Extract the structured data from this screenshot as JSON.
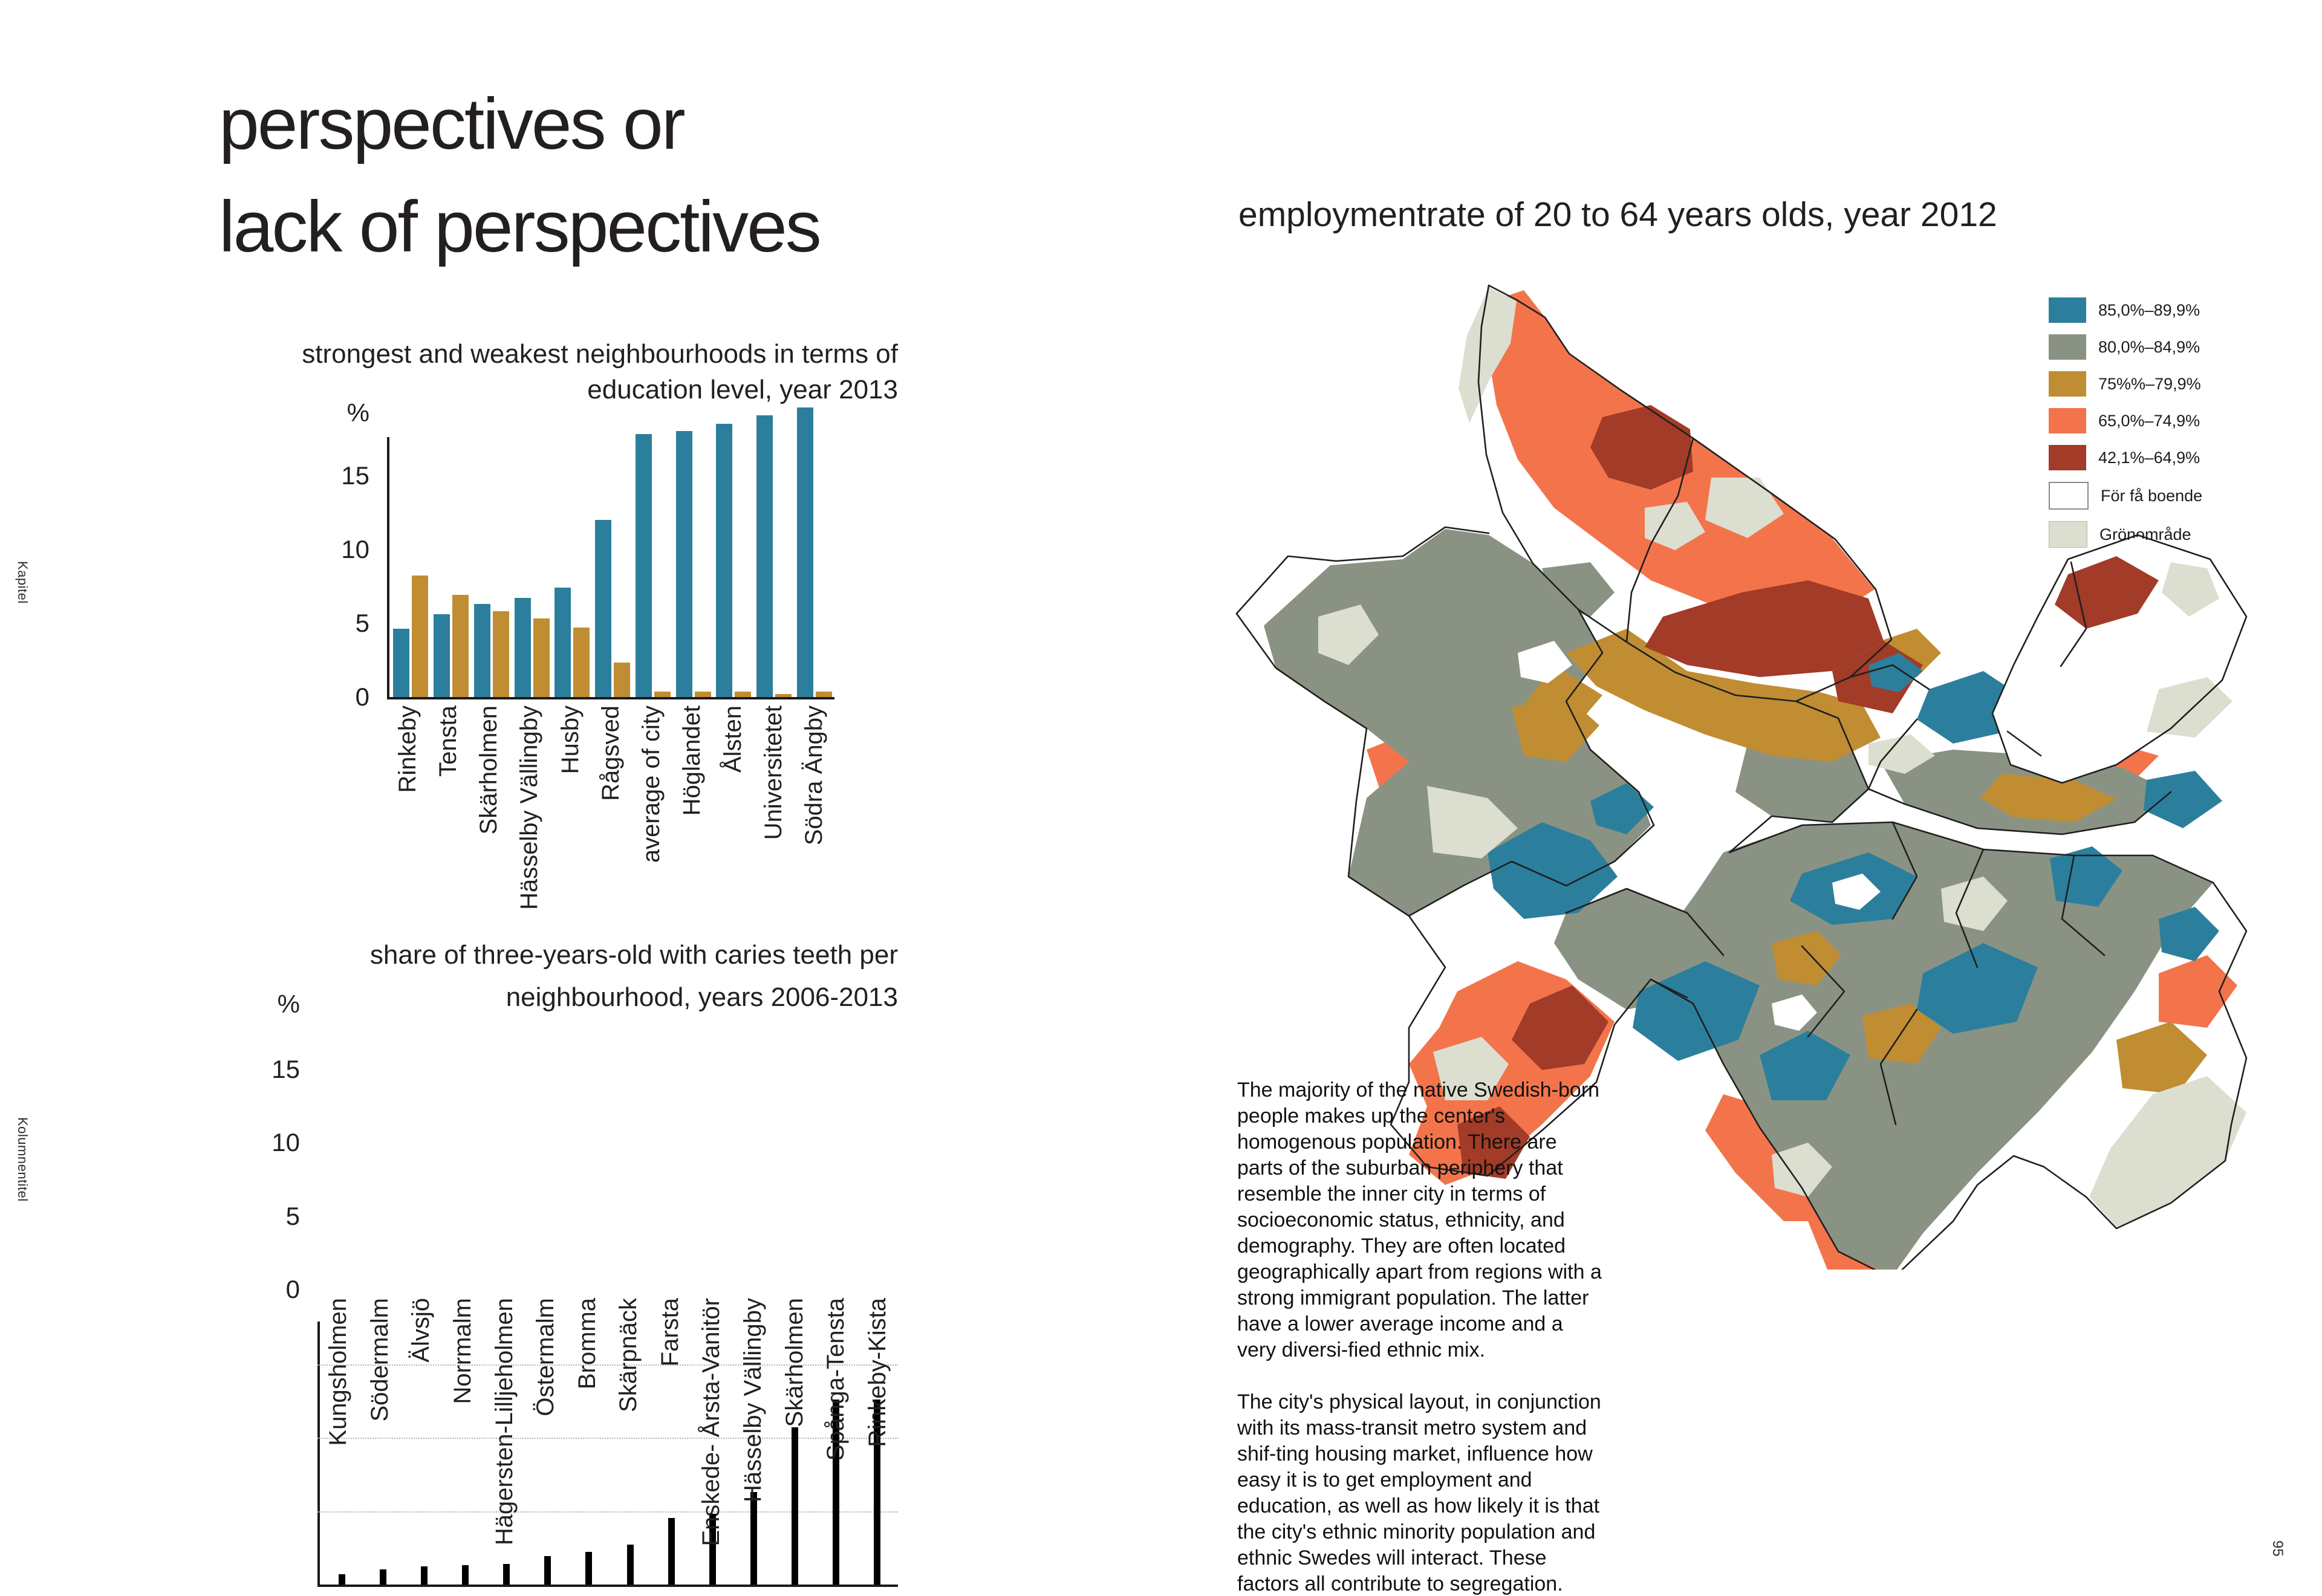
{
  "page": {
    "margin_label_top": "Kapitel",
    "margin_label_bottom": "Kolumnentitel",
    "page_number": "95",
    "title_line1": "perspectives or",
    "title_line2": "lack of perspectives"
  },
  "map": {
    "title": "employmentrate of 20 to 64 years olds, year 2012",
    "legend": [
      {
        "key": "teal",
        "label": "85,0%–89,9%",
        "color": "#2b7f9d"
      },
      {
        "key": "green",
        "label": "80,0%–84,9%",
        "color": "#8a9383"
      },
      {
        "key": "gold",
        "label": "75%%–79,9%",
        "color": "#c08d33"
      },
      {
        "key": "orange",
        "label": "65,0%–74,9%",
        "color": "#f3744b"
      },
      {
        "key": "dred",
        "label": "42,1%–64,9%",
        "color": "#a23b27"
      },
      {
        "key": "white",
        "label": "För få boende",
        "color": "#ffffff"
      },
      {
        "key": "pale",
        "label": "Grönområde",
        "color": "#dcded0"
      }
    ],
    "paragraph1": "The majority of the native Swedish-born people makes up the center's homogenous population. There are parts of the suburban periphery that resemble the inner city in terms of socioeconomic status, ethnicity, and demography. They are often located geographically apart from regions with a strong immigrant population. The latter have a lower average income and a very diversi-fied ethnic mix.",
    "paragraph2": "The city's physical layout, in conjunction with its mass-transit metro system and shif-ting housing market, influence how easy it is to get employment and education, as well as how likely it is that the city's ethnic minority population and ethnic Swedes will interact. These factors all contribute to segregation."
  },
  "chart_data": [
    {
      "type": "bar",
      "title_lines": [
        "strongest and weakest neighbourhoods in terms of",
        "education level, year 2013"
      ],
      "ylabel": "%",
      "yticks": [
        0,
        5,
        10,
        15
      ],
      "ylim": [
        0,
        20
      ],
      "legend_position": "none",
      "grid": false,
      "categories": [
        "Rinkeby",
        "Tensta",
        "Skärholmen",
        "Hässelby Vällingby",
        "Husby",
        "Rågsved",
        "average of city",
        "Höglandet",
        "Ålsten",
        "Universitetet",
        "Södra Ängby"
      ],
      "series": [
        {
          "name": "high-education",
          "color": "#2b7f9d",
          "values": [
            4.7,
            5.7,
            6.4,
            6.8,
            7.5,
            12.1,
            17.9,
            18.1,
            18.6,
            19.2,
            19.7
          ]
        },
        {
          "name": "low-education",
          "color": "#c08d33",
          "values": [
            8.3,
            7.0,
            5.9,
            5.4,
            4.8,
            2.4,
            0.45,
            0.45,
            0.45,
            0.3,
            0.45
          ]
        }
      ]
    },
    {
      "type": "bar",
      "title_lines": [
        "share  of three-years-old with caries teeth per",
        "neighbourhood, years 2006-2013"
      ],
      "ylabel": "%",
      "yticks": [
        0,
        5,
        10,
        15
      ],
      "ylim": [
        0,
        18
      ],
      "gridlines": [
        5,
        10,
        15
      ],
      "grid": true,
      "bar_color": "#000000",
      "categories": [
        "Kungsholmen",
        "Södermalm",
        "Älvsjö",
        "Norrmalm",
        "Hägersten-Lilljeholmen",
        "Östermalm",
        "Bromma",
        "Skärpnäck",
        "Farsta",
        "Enskede- Årsta-Vanitör",
        "Hässelby Vällingby",
        "Skärholmen",
        "Spånga-Tensta",
        "Rinkeby-Kista"
      ],
      "values": [
        0.8,
        1.1,
        1.3,
        1.4,
        1.5,
        2.0,
        2.3,
        2.8,
        4.6,
        4.9,
        6.4,
        10.8,
        12.7,
        12.7
      ]
    }
  ]
}
